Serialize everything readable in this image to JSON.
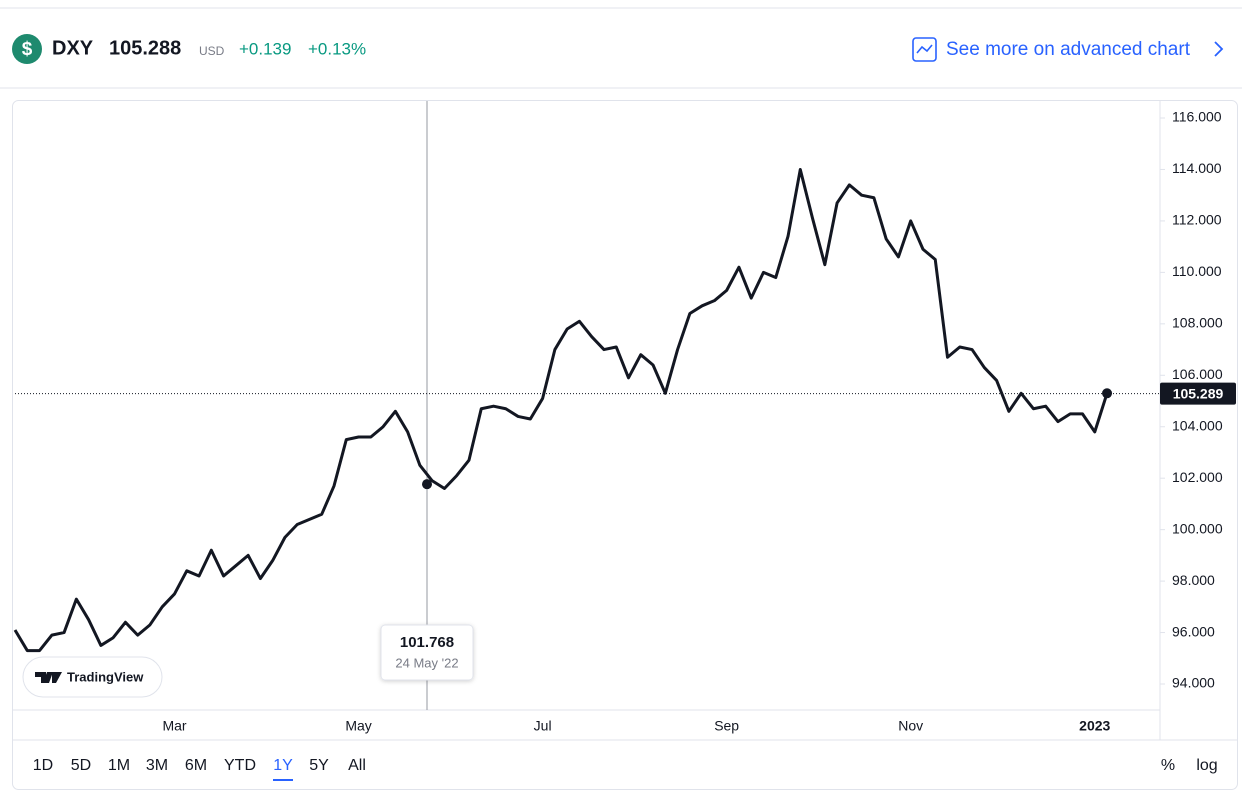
{
  "header": {
    "icon": "$",
    "symbol": "DXY",
    "price": "105.288",
    "currency": "USD",
    "change": "+0.139",
    "change_percent": "+0.13%",
    "link": "See more on advanced chart"
  },
  "chart_data": {
    "type": "line",
    "color": "#131722",
    "categories": [
      null,
      null,
      null,
      null,
      null,
      null,
      null,
      null,
      null,
      null,
      null,
      null,
      null,
      "Mar",
      null,
      null,
      null,
      null,
      null,
      null,
      null,
      null,
      null,
      null,
      null,
      null,
      null,
      null,
      "May",
      null,
      null,
      null,
      null,
      null,
      null,
      null,
      null,
      null,
      null,
      null,
      null,
      null,
      null,
      "Jul",
      null,
      null,
      null,
      null,
      null,
      null,
      null,
      null,
      null,
      null,
      null,
      null,
      null,
      null,
      "Sep",
      null,
      null,
      null,
      null,
      null,
      null,
      null,
      null,
      null,
      null,
      null,
      null,
      null,
      null,
      "Nov",
      null,
      null,
      null,
      null,
      null,
      null,
      null,
      null,
      null,
      null,
      null,
      null,
      null,
      null,
      "2023",
      null
    ],
    "values": [
      96.1,
      95.3,
      95.3,
      95.9,
      96.0,
      97.3,
      96.5,
      95.5,
      95.8,
      96.4,
      95.9,
      96.3,
      97.0,
      97.5,
      98.4,
      98.2,
      99.2,
      98.2,
      98.6,
      99.0,
      98.1,
      98.8,
      99.7,
      100.2,
      100.4,
      100.6,
      101.7,
      103.5,
      103.6,
      103.6,
      104.0,
      104.6,
      103.8,
      102.5,
      101.9,
      101.6,
      102.1,
      102.7,
      104.7,
      104.8,
      104.7,
      104.4,
      104.3,
      105.1,
      107.0,
      107.8,
      108.1,
      107.5,
      107.0,
      107.1,
      105.9,
      106.8,
      106.4,
      105.3,
      107.0,
      108.4,
      108.7,
      108.9,
      109.3,
      110.2,
      109.0,
      110.0,
      109.8,
      111.4,
      114.0,
      112.1,
      110.3,
      112.7,
      113.4,
      113.0,
      112.9,
      111.3,
      110.6,
      112.0,
      110.9,
      110.5,
      106.7,
      107.1,
      107.0,
      106.3,
      105.8,
      104.6,
      105.3,
      104.7,
      104.8,
      104.2,
      104.5,
      104.5,
      103.8,
      105.3
    ],
    "ylim": [
      92.99,
      116.7
    ],
    "yticks": [
      {
        "value": 94,
        "label": "94.000"
      },
      {
        "value": 96,
        "label": "96.000"
      },
      {
        "value": 98,
        "label": "98.000"
      },
      {
        "value": 100,
        "label": "100.000"
      },
      {
        "value": 102,
        "label": "102.000"
      },
      {
        "value": 104,
        "label": "104.000"
      },
      {
        "value": 106,
        "label": "106.000"
      },
      {
        "value": 108,
        "label": "108.000"
      },
      {
        "value": 110,
        "label": "110.000"
      },
      {
        "value": 112,
        "label": "112.000"
      },
      {
        "value": 114,
        "label": "114.000"
      },
      {
        "value": 116,
        "label": "116.000"
      }
    ],
    "last_price": 105.289,
    "tooltip": {
      "value": 101.768,
      "date": "24 May '22"
    },
    "watermark": "TradingView"
  },
  "range_buttons": [
    "1D",
    "5D",
    "1M",
    "3M",
    "6M",
    "YTD",
    "1Y",
    "5Y",
    "All"
  ],
  "active_range": "1Y",
  "scale_buttons": [
    "%",
    "log"
  ]
}
